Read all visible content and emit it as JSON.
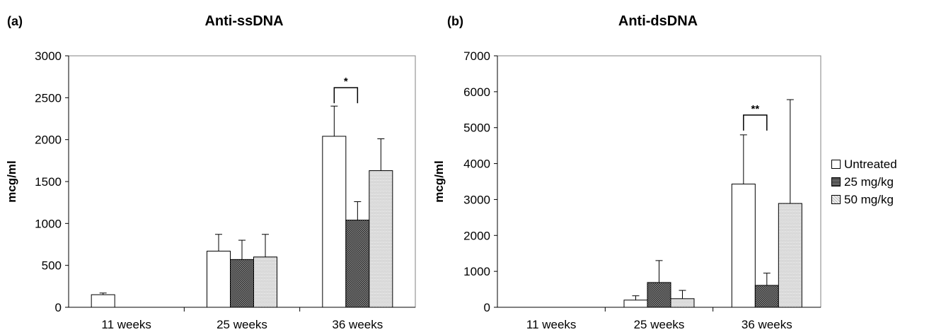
{
  "chart_data": [
    {
      "type": "bar",
      "panel_label": "(a)",
      "title": "Anti-ssDNA",
      "ylabel": "mcg/ml",
      "xlabel": "",
      "ylim": [
        0,
        3000
      ],
      "yticks": [
        0,
        500,
        1000,
        1500,
        2000,
        2500,
        3000
      ],
      "categories": [
        "11 weeks",
        "25 weeks",
        "36 weeks"
      ],
      "series": [
        {
          "name": "Untreated",
          "values": [
            150,
            670,
            2040
          ],
          "errors": [
            20,
            200,
            360
          ]
        },
        {
          "name": "25 mg/kg",
          "values": [
            0,
            570,
            1040
          ],
          "errors": [
            0,
            230,
            220
          ]
        },
        {
          "name": "50 mg/kg",
          "values": [
            0,
            600,
            1630
          ],
          "errors": [
            0,
            270,
            380
          ]
        }
      ],
      "annotations": [
        {
          "text": "*",
          "category": "36 weeks",
          "between": [
            "Untreated",
            "25 mg/kg"
          ],
          "y": 2620
        }
      ],
      "grid": false,
      "legend": "right"
    },
    {
      "type": "bar",
      "panel_label": "(b)",
      "title": "Anti-dsDNA",
      "ylabel": "mcg/ml",
      "xlabel": "",
      "ylim": [
        0,
        7000
      ],
      "yticks": [
        0,
        1000,
        2000,
        3000,
        4000,
        5000,
        6000,
        7000
      ],
      "categories": [
        "11 weeks",
        "25 weeks",
        "36 weeks"
      ],
      "series": [
        {
          "name": "Untreated",
          "values": [
            0,
            200,
            3430
          ],
          "errors": [
            0,
            120,
            1370
          ]
        },
        {
          "name": "25 mg/kg",
          "values": [
            0,
            690,
            610
          ],
          "errors": [
            0,
            610,
            340
          ]
        },
        {
          "name": "50 mg/kg",
          "values": [
            0,
            240,
            2890
          ],
          "errors": [
            0,
            230,
            2890
          ]
        }
      ],
      "annotations": [
        {
          "text": "**",
          "category": "36 weeks",
          "between": [
            "Untreated",
            "25 mg/kg"
          ],
          "y": 5350
        }
      ],
      "grid": false,
      "legend": "right"
    }
  ],
  "legend": {
    "items": [
      {
        "label": "Untreated",
        "fill": "#ffffff"
      },
      {
        "label": "25 mg/kg",
        "fill": "#555555"
      },
      {
        "label": "50 mg/kg",
        "fill": "#e8e8e8"
      }
    ]
  }
}
